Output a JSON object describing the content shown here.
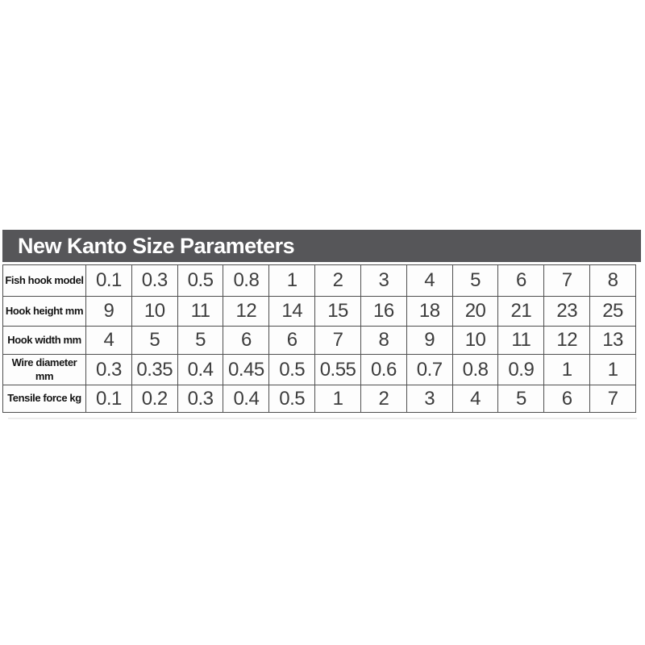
{
  "title_bar": {
    "title": "New Kanto Size Parameters"
  },
  "colors": {
    "bar_bg": "#565659",
    "bar_text": "#ffffff",
    "border": "#4f4f4f",
    "cell_bg": "#fdfdfd",
    "number_text": "#3d3d3d",
    "label_text": "#141414",
    "page_bg": "#ffffff"
  },
  "chart_data": {
    "type": "table",
    "title": "New Kanto Size Parameters",
    "legend_position": "none",
    "grid": true,
    "row_labels": [
      "Fish hook model",
      "Hook height mm",
      "Hook width mm",
      "Wire diameter mm",
      "Tensile force kg"
    ],
    "rows": [
      {
        "label": "Fish hook model",
        "values": [
          "0.1",
          "0.3",
          "0.5",
          "0.8",
          "1",
          "2",
          "3",
          "4",
          "5",
          "6",
          "7",
          "8"
        ]
      },
      {
        "label": "Hook height mm",
        "values": [
          "9",
          "10",
          "11",
          "12",
          "14",
          "15",
          "16",
          "18",
          "20",
          "21",
          "23",
          "25"
        ]
      },
      {
        "label": "Hook width mm",
        "values": [
          "4",
          "5",
          "5",
          "6",
          "6",
          "7",
          "8",
          "9",
          "10",
          "11",
          "12",
          "13"
        ]
      },
      {
        "label": "Wire diameter mm",
        "values": [
          "0.3",
          "0.35",
          "0.4",
          "0.45",
          "0.5",
          "0.55",
          "0.6",
          "0.7",
          "0.8",
          "0.9",
          "1",
          "1"
        ]
      },
      {
        "label": "Tensile force kg",
        "values": [
          "0.1",
          "0.2",
          "0.3",
          "0.4",
          "0.5",
          "1",
          "2",
          "3",
          "4",
          "5",
          "6",
          "7"
        ]
      }
    ]
  }
}
